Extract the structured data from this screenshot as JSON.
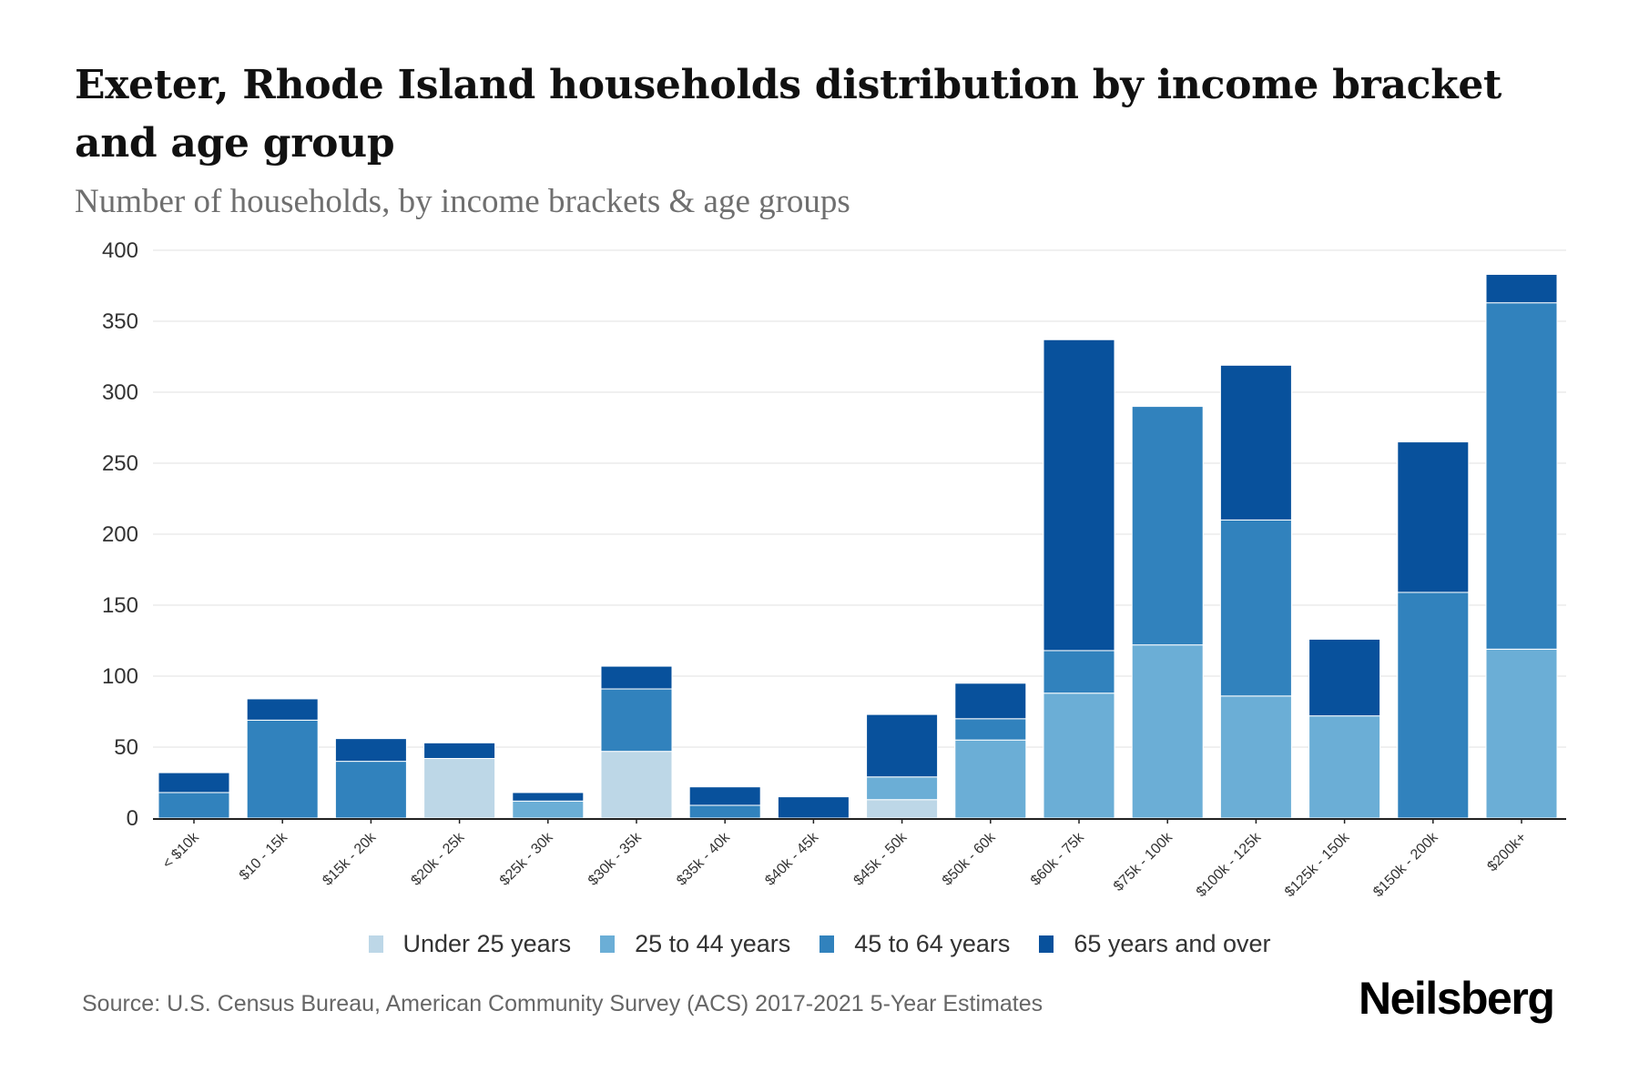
{
  "header": {
    "title": "Exeter, Rhode Island households distribution by income bracket and age group",
    "subtitle": "Number of households, by income brackets & age groups"
  },
  "chart_data": {
    "type": "bar",
    "stacked": true,
    "title": "Exeter, Rhode Island households distribution by income bracket and age group",
    "subtitle": "Number of households, by income brackets & age groups",
    "xlabel": "",
    "ylabel": "",
    "ylim": [
      0,
      400
    ],
    "yticks": [
      0,
      50,
      100,
      150,
      200,
      250,
      300,
      350,
      400
    ],
    "ytick_labels": [
      "0",
      "50",
      "100",
      "150",
      "200",
      "250",
      "300",
      "350",
      "400"
    ],
    "grid": true,
    "legend_position": "bottom",
    "categories": [
      "< $10k",
      "$10 - 15k",
      "$15k - 20k",
      "$20k - 25k",
      "$25k - 30k",
      "$30k - 35k",
      "$35k - 40k",
      "$40k - 45k",
      "$45k - 50k",
      "$50k - 60k",
      "$60k - 75k",
      "$75k - 100k",
      "$100k - 125k",
      "$125k - 150k",
      "$150k - 200k",
      "$200k+"
    ],
    "series": [
      {
        "name": "Under 25 years",
        "color": "#bdd7e7",
        "values": [
          0,
          0,
          0,
          42,
          0,
          47,
          0,
          0,
          13,
          0,
          0,
          0,
          0,
          0,
          0,
          0
        ]
      },
      {
        "name": "25 to 44 years",
        "color": "#6baed6",
        "values": [
          0,
          0,
          0,
          0,
          12,
          0,
          0,
          0,
          16,
          55,
          88,
          122,
          86,
          72,
          0,
          119
        ]
      },
      {
        "name": "45 to 64 years",
        "color": "#3182bd",
        "values": [
          18,
          69,
          40,
          0,
          0,
          44,
          9,
          0,
          0,
          15,
          30,
          168,
          124,
          0,
          159,
          244
        ]
      },
      {
        "name": "65 years and over",
        "color": "#08519c",
        "values": [
          14,
          15,
          16,
          11,
          6,
          16,
          13,
          15,
          44,
          25,
          219,
          0,
          109,
          54,
          106,
          20
        ]
      }
    ]
  },
  "footer": {
    "source": "Source: U.S. Census Bureau, American Community Survey (ACS) 2017-2021 5-Year Estimates",
    "logo": "Neilsberg"
  }
}
